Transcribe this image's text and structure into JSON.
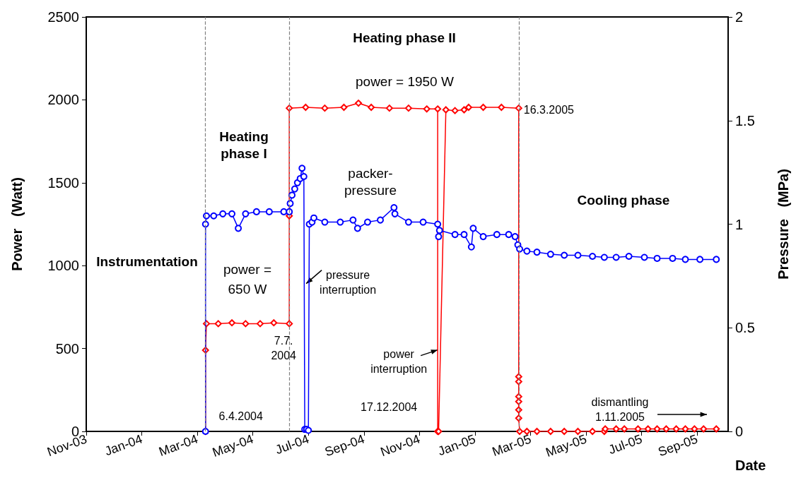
{
  "chart_data": {
    "type": "line",
    "xlabel": "Date",
    "ylabel": "Power   (Watt)",
    "y2label": "Pressure   (MPa)",
    "xlim": [
      "2003-11-27",
      "2005-11-01"
    ],
    "xticks": [
      {
        "value": "2003-11-27",
        "label": "Nov-03"
      },
      {
        "value": "2004-01-27",
        "label": "Jan-04"
      },
      {
        "value": "2004-03-28",
        "label": "Mar-04"
      },
      {
        "value": "2004-05-28",
        "label": "May-04"
      },
      {
        "value": "2004-07-28",
        "label": "Jul-04"
      },
      {
        "value": "2004-09-27",
        "label": "Sep-04"
      },
      {
        "value": "2004-11-27",
        "label": "Nov-04"
      },
      {
        "value": "2005-01-27",
        "label": "Jan-05"
      },
      {
        "value": "2005-03-29",
        "label": "Mar-05"
      },
      {
        "value": "2005-05-29",
        "label": "May-05"
      },
      {
        "value": "2005-07-29",
        "label": "Jul-05"
      },
      {
        "value": "2005-09-28",
        "label": "Sep-05"
      }
    ],
    "ylim": [
      0,
      2500
    ],
    "yticks": [
      0,
      500,
      1000,
      1500,
      2000,
      2500
    ],
    "y2lim": [
      0,
      2
    ],
    "y2ticks": [
      0,
      0.5,
      1,
      1.5,
      2
    ],
    "series": [
      {
        "color": "#ff0000",
        "marker": "diamond",
        "x": [
          "2004-04-06",
          "2004-04-06",
          "2004-04-07",
          "2004-04-20",
          "2004-05-05",
          "2004-05-20",
          "2004-06-05",
          "2004-06-20",
          "2004-07-07",
          "2004-07-07",
          "2004-07-07",
          "2004-07-25",
          "2004-08-15",
          "2004-09-05",
          "2004-09-21",
          "2004-10-05",
          "2004-10-25",
          "2004-11-15",
          "2004-12-05",
          "2004-12-17",
          "2004-12-17",
          "2004-12-18",
          "2004-12-26",
          "2005-01-05",
          "2005-01-15",
          "2005-01-20",
          "2005-02-05",
          "2005-02-25",
          "2005-03-16",
          "2005-03-16",
          "2005-03-16",
          "2005-03-16",
          "2005-03-16",
          "2005-03-16",
          "2005-03-16",
          "2005-03-17",
          "2005-03-25",
          "2005-04-05",
          "2005-04-20",
          "2005-05-05",
          "2005-05-20",
          "2005-06-05",
          "2005-06-18",
          "2005-06-19",
          "2005-07-01",
          "2005-07-10",
          "2005-07-25",
          "2005-08-05",
          "2005-08-15",
          "2005-08-25",
          "2005-09-05",
          "2005-09-15",
          "2005-09-25",
          "2005-10-05",
          "2005-10-19"
        ],
        "values": [
          0,
          490,
          650,
          650,
          655,
          650,
          650,
          655,
          650,
          1300,
          1950,
          1955,
          1950,
          1955,
          1980,
          1955,
          1950,
          1950,
          1945,
          1945,
          0,
          0,
          1940,
          1935,
          1940,
          1955,
          1955,
          1955,
          1950,
          330,
          300,
          210,
          180,
          130,
          80,
          0,
          0,
          0,
          0,
          0,
          0,
          0,
          0,
          15,
          15,
          15,
          15,
          15,
          15,
          15,
          15,
          15,
          15,
          15,
          15
        ]
      },
      {
        "color": "#0000ff",
        "marker": "circle",
        "axis": "y2",
        "x": [
          "2004-04-06",
          "2004-04-06",
          "2004-04-07",
          "2004-04-15",
          "2004-04-25",
          "2004-05-05",
          "2004-05-12",
          "2004-05-20",
          "2004-06-01",
          "2004-06-15",
          "2004-07-01",
          "2004-07-07",
          "2004-07-08",
          "2004-07-10",
          "2004-07-13",
          "2004-07-16",
          "2004-07-19",
          "2004-07-21",
          "2004-07-23",
          "2004-07-24",
          "2004-07-26",
          "2004-07-28",
          "2004-07-29",
          "2004-08-01",
          "2004-08-03",
          "2004-08-15",
          "2004-09-01",
          "2004-09-15",
          "2004-09-20",
          "2004-10-01",
          "2004-10-15",
          "2004-10-30",
          "2004-10-31",
          "2004-11-15",
          "2004-12-01",
          "2004-12-17",
          "2004-12-18",
          "2004-12-19",
          "2005-01-05",
          "2005-01-15",
          "2005-01-23",
          "2005-01-25",
          "2005-02-05",
          "2005-02-20",
          "2005-03-05",
          "2005-03-12",
          "2005-03-15",
          "2005-03-17",
          "2005-03-25",
          "2005-04-05",
          "2005-04-20",
          "2005-05-05",
          "2005-05-20",
          "2005-06-05",
          "2005-06-18",
          "2005-07-01",
          "2005-07-15",
          "2005-08-01",
          "2005-08-15",
          "2005-09-01",
          "2005-09-15",
          "2005-10-01",
          "2005-10-19"
        ],
        "values": [
          0,
          1.0,
          1.04,
          1.04,
          1.05,
          1.05,
          0.98,
          1.05,
          1.06,
          1.06,
          1.06,
          1.06,
          1.1,
          1.14,
          1.17,
          1.2,
          1.22,
          1.27,
          1.23,
          0.01,
          0.01,
          0.005,
          1.0,
          1.01,
          1.03,
          1.01,
          1.01,
          1.02,
          0.98,
          1.01,
          1.02,
          1.08,
          1.05,
          1.01,
          1.01,
          1.0,
          0.94,
          0.97,
          0.95,
          0.95,
          0.89,
          0.98,
          0.94,
          0.95,
          0.95,
          0.94,
          0.9,
          0.88,
          0.87,
          0.865,
          0.855,
          0.85,
          0.85,
          0.845,
          0.84,
          0.84,
          0.845,
          0.84,
          0.835,
          0.835,
          0.83,
          0.83,
          0.83
        ]
      }
    ],
    "ref_lines": [
      {
        "axis": "x",
        "value": "2004-04-06",
        "color": "#808080",
        "line_style": "dashed"
      },
      {
        "axis": "x",
        "value": "2004-07-07",
        "color": "#808080",
        "line_style": "dashed"
      },
      {
        "axis": "x",
        "value": "2005-03-16",
        "color": "#808080",
        "line_style": "dashed"
      }
    ],
    "annotations": [
      "Instrumentation",
      "Heating\nphase I",
      "Heating phase II",
      "packer-\npressure",
      "Cooling phase",
      {
        "text": "6.4.2004",
        "x": "2004-04-06",
        "y": 0
      },
      {
        "text": "7.7.\n2004",
        "x": "2004-07-07",
        "y": 650
      },
      {
        "text": "16.3.2005",
        "x": "2005-03-16",
        "y": 1950
      },
      {
        "text": "17.12.2004",
        "x": "2004-12-17",
        "y": 0
      },
      {
        "text": "power =\n650 W",
        "x": "2004-05-22",
        "y": 650
      },
      {
        "text": "power = 1950 W",
        "x": "2004-10-20",
        "y": 1950
      },
      {
        "text": "pressure\ninterruption",
        "x": "2004-07-24",
        "y": 900
      },
      {
        "text": "power\ninterruption",
        "x": "2004-12-17",
        "y": 500
      },
      "dismantling\n1.11.2005"
    ]
  }
}
